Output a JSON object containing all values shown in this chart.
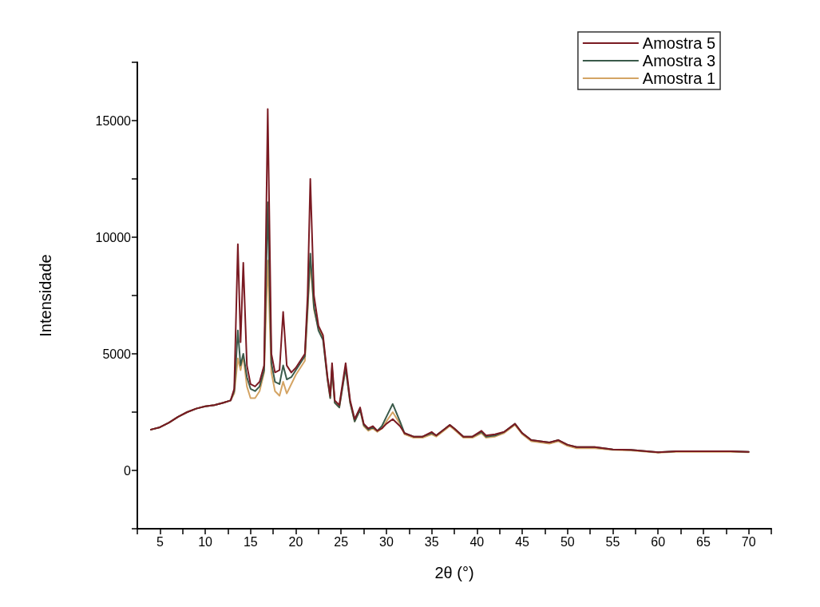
{
  "chart_data": {
    "type": "line",
    "xlabel": "2θ (°)",
    "ylabel": "Intensidade",
    "xlim": [
      2.5,
      72.5
    ],
    "ylim": [
      -2500,
      17500
    ],
    "xticks": [
      {
        "value": 2.5,
        "label": null
      },
      5,
      {
        "value": 7.5,
        "label": null
      },
      10,
      {
        "value": 12.5,
        "label": null
      },
      15,
      {
        "value": 17.5,
        "label": null
      },
      20,
      {
        "value": 22.5,
        "label": null
      },
      25,
      {
        "value": 27.5,
        "label": null
      },
      30,
      {
        "value": 32.5,
        "label": null
      },
      35,
      {
        "value": 37.5,
        "label": null
      },
      40,
      {
        "value": 42.5,
        "label": null
      },
      45,
      {
        "value": 47.5,
        "label": null
      },
      50,
      {
        "value": 52.5,
        "label": null
      },
      55,
      {
        "value": 57.5,
        "label": null
      },
      60,
      {
        "value": 62.5,
        "label": null
      },
      65,
      {
        "value": 67.5,
        "label": null
      },
      70,
      {
        "value": 72.5,
        "label": null
      }
    ],
    "yticks": [
      {
        "value": -2500,
        "label": null
      },
      0,
      {
        "value": 2500,
        "label": null
      },
      5000,
      {
        "value": 7500,
        "label": null
      },
      10000,
      {
        "value": 12500,
        "label": null
      },
      15000,
      {
        "value": 17500,
        "label": null
      }
    ],
    "x": [
      4,
      5,
      6,
      7,
      8,
      9,
      10,
      11,
      12,
      12.8,
      13.2,
      13.6,
      13.9,
      14.2,
      14.6,
      15,
      15.5,
      16,
      16.5,
      16.9,
      17.3,
      17.7,
      18.2,
      18.6,
      19,
      19.5,
      20,
      20.5,
      21,
      21.3,
      21.6,
      22,
      22.5,
      23,
      23.5,
      23.8,
      24,
      24.3,
      24.8,
      25.5,
      26,
      26.5,
      27.1,
      27.5,
      28,
      28.5,
      29,
      29.5,
      30,
      30.7,
      31.5,
      32,
      33,
      34,
      35,
      35.5,
      36.5,
      37,
      37.5,
      38.5,
      39.5,
      40.5,
      41,
      42,
      43,
      44.2,
      45,
      46,
      47,
      48,
      49,
      50,
      51,
      53,
      55,
      57,
      60,
      62,
      65,
      68,
      70
    ],
    "series": [
      {
        "name": "Amostra 5",
        "color": "#7a1a22",
        "values": [
          1750,
          1850,
          2050,
          2300,
          2500,
          2650,
          2750,
          2800,
          2900,
          3000,
          3500,
          9700,
          5500,
          8900,
          4500,
          3700,
          3600,
          3800,
          4500,
          15500,
          5000,
          4200,
          4300,
          6800,
          4500,
          4200,
          4400,
          4700,
          5000,
          7500,
          12500,
          7500,
          6200,
          5800,
          4000,
          3200,
          4600,
          3000,
          2800,
          4600,
          3000,
          2200,
          2700,
          2000,
          1800,
          1900,
          1700,
          1800,
          2000,
          2200,
          1900,
          1600,
          1450,
          1450,
          1650,
          1500,
          1800,
          1950,
          1800,
          1450,
          1450,
          1700,
          1500,
          1550,
          1650,
          2000,
          1600,
          1300,
          1250,
          1200,
          1300,
          1100,
          1000,
          1000,
          900,
          880,
          780,
          820,
          820,
          820,
          800
        ]
      },
      {
        "name": "Amostra 3",
        "color": "#3a5a4a",
        "values": [
          1750,
          1850,
          2050,
          2300,
          2500,
          2650,
          2750,
          2800,
          2900,
          3000,
          3400,
          6000,
          4500,
          5000,
          4000,
          3500,
          3400,
          3600,
          4300,
          11500,
          4600,
          3800,
          3700,
          4500,
          3900,
          4000,
          4300,
          4600,
          4900,
          7000,
          9300,
          7000,
          6000,
          5600,
          3900,
          3100,
          4400,
          2900,
          2700,
          4400,
          2900,
          2100,
          2600,
          1950,
          1750,
          1850,
          1700,
          1900,
          2300,
          2850,
          2100,
          1600,
          1450,
          1450,
          1600,
          1500,
          1800,
          1950,
          1800,
          1450,
          1450,
          1650,
          1450,
          1500,
          1650,
          2000,
          1600,
          1300,
          1250,
          1200,
          1300,
          1100,
          1000,
          1000,
          900,
          880,
          780,
          820,
          820,
          820,
          800
        ]
      },
      {
        "name": "Amostra 1",
        "color": "#d4a464",
        "values": [
          1750,
          1850,
          2050,
          2300,
          2500,
          2650,
          2750,
          2800,
          2900,
          3000,
          3300,
          4800,
          4300,
          4900,
          3600,
          3100,
          3100,
          3400,
          4200,
          9000,
          4200,
          3400,
          3200,
          3800,
          3300,
          3700,
          4100,
          4400,
          4700,
          6800,
          9000,
          6900,
          6100,
          5700,
          3900,
          3100,
          4300,
          2900,
          2700,
          4400,
          2900,
          2100,
          2600,
          1900,
          1700,
          1800,
          1650,
          1800,
          2100,
          2500,
          2000,
          1550,
          1400,
          1400,
          1550,
          1450,
          1750,
          1900,
          1750,
          1400,
          1400,
          1600,
          1400,
          1450,
          1600,
          1950,
          1550,
          1250,
          1200,
          1150,
          1250,
          1050,
          950,
          950,
          880,
          860,
          760,
          800,
          800,
          800,
          780
        ]
      }
    ],
    "legend": "top right",
    "grid": false,
    "marker": "none",
    "line_style": "solid"
  }
}
